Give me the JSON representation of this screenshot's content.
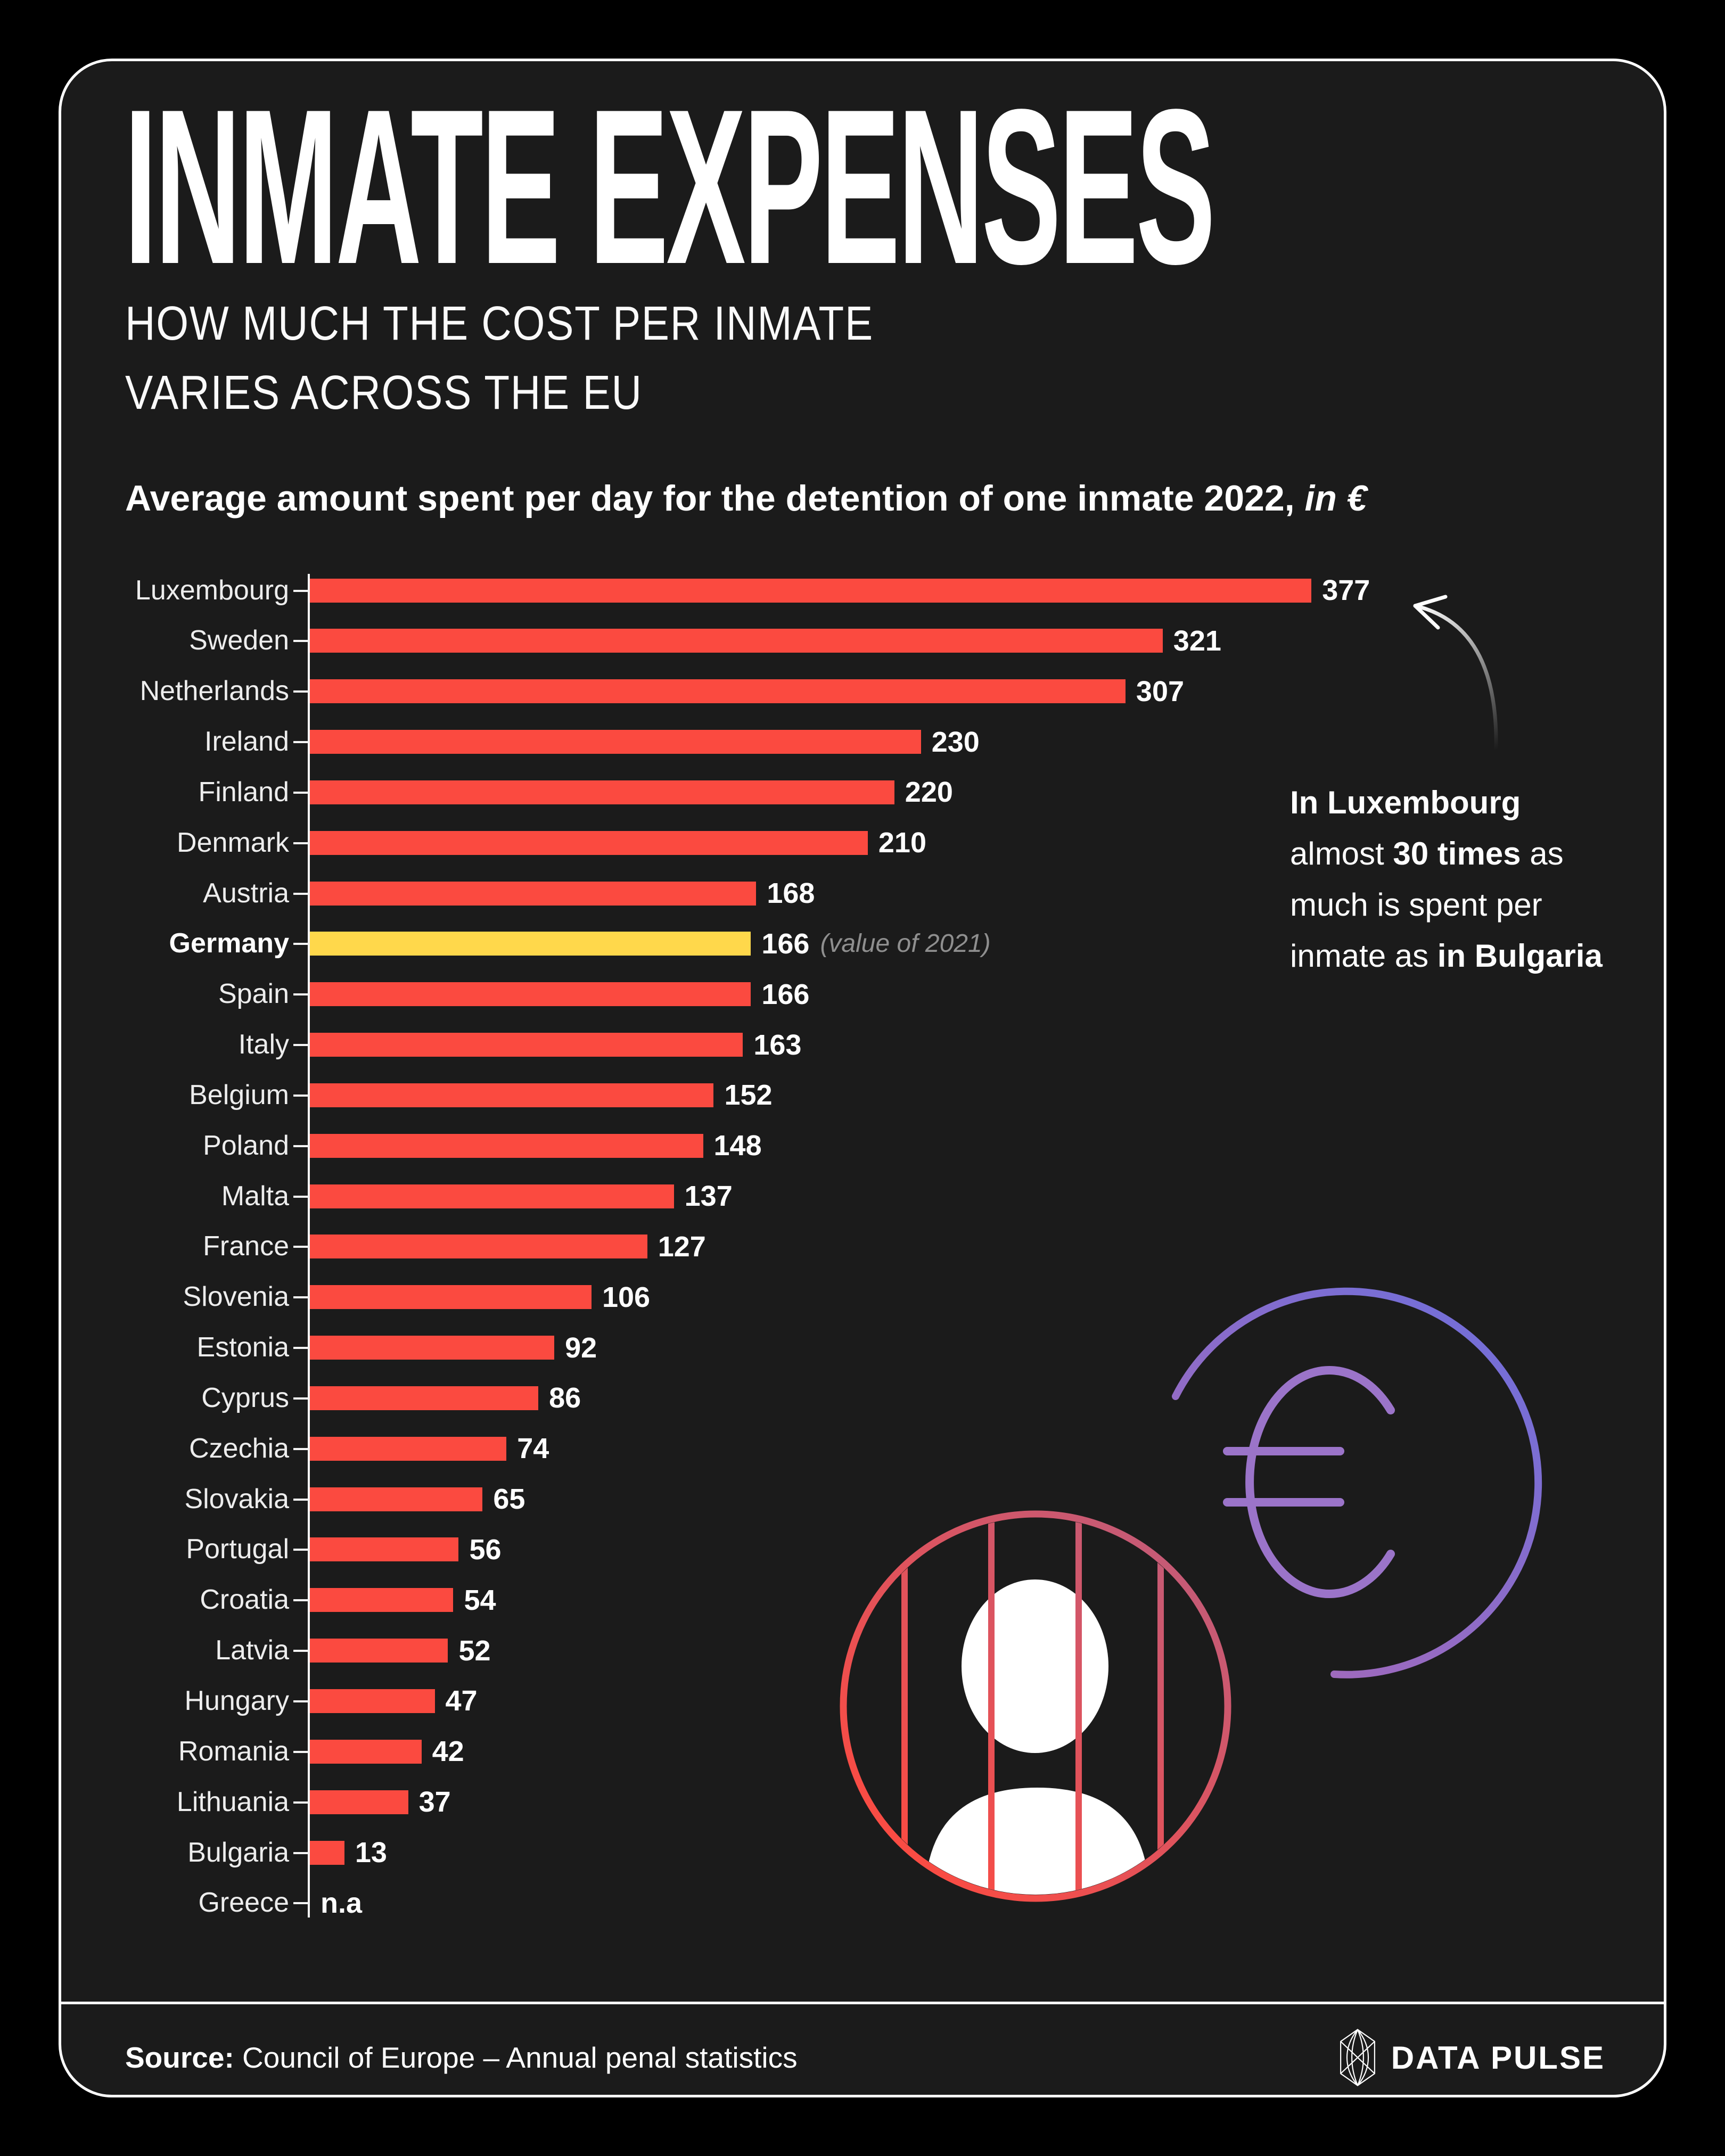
{
  "colors": {
    "page_bg": "#000000",
    "card_bg": "#1b1b1b",
    "card_border": "#ffffff",
    "bar_red": "#fb4a40",
    "bar_highlight_yellow": "#ffd84b",
    "note_gray": "#8f8f8f",
    "inmate_gradient": [
      "#ff4a3e",
      "#b55f85"
    ],
    "euro_coin_gradient": [
      "#6d6fdc",
      "#a869b7"
    ],
    "euro_sign_purple": "#9b74c9"
  },
  "header": {
    "title": "INMATE EXPENSES",
    "subtitle_line1": "HOW MUCH THE COST PER INMATE",
    "subtitle_line2": "VARIES ACROSS THE EU",
    "chart_heading_main": "Average amount spent per day for the detention of one inmate 2022, ",
    "chart_heading_italic": "in €"
  },
  "annotation": {
    "l1": "In Luxembourg",
    "l2a": "almost ",
    "l2b": "30 times",
    "l2c": " as",
    "l3": "much is spent per",
    "l4a": "inmate as ",
    "l4b": "in Bulgaria"
  },
  "chart_data": {
    "type": "bar",
    "orientation": "horizontal",
    "title": "Average amount spent per day for the detention of one inmate 2022, in €",
    "unit": "€ per day",
    "xlim": [
      0,
      377
    ],
    "grid": false,
    "categories": [
      "Luxembourg",
      "Sweden",
      "Netherlands",
      "Ireland",
      "Finland",
      "Denmark",
      "Austria",
      "Germany",
      "Spain",
      "Italy",
      "Belgium",
      "Poland",
      "Malta",
      "France",
      "Slovenia",
      "Estonia",
      "Cyprus",
      "Czechia",
      "Slovakia",
      "Portugal",
      "Croatia",
      "Latvia",
      "Hungary",
      "Romania",
      "Lithuania",
      "Bulgaria",
      "Greece"
    ],
    "values": [
      377,
      321,
      307,
      230,
      220,
      210,
      168,
      166,
      166,
      163,
      152,
      148,
      137,
      127,
      106,
      92,
      86,
      74,
      65,
      56,
      54,
      52,
      47,
      42,
      37,
      13,
      null
    ],
    "na_label": "n.a",
    "highlight_country": "Germany",
    "highlight_note": "(value of 2021)",
    "rows": [
      {
        "country": "Luxembourg",
        "value": 377
      },
      {
        "country": "Sweden",
        "value": 321
      },
      {
        "country": "Netherlands",
        "value": 307
      },
      {
        "country": "Ireland",
        "value": 230
      },
      {
        "country": "Finland",
        "value": 220
      },
      {
        "country": "Denmark",
        "value": 210
      },
      {
        "country": "Austria",
        "value": 168
      },
      {
        "country": "Germany",
        "value": 166,
        "highlight": true,
        "note": "(value of 2021)"
      },
      {
        "country": "Spain",
        "value": 166
      },
      {
        "country": "Italy",
        "value": 163
      },
      {
        "country": "Belgium",
        "value": 152
      },
      {
        "country": "Poland",
        "value": 148
      },
      {
        "country": "Malta",
        "value": 137
      },
      {
        "country": "France",
        "value": 127
      },
      {
        "country": "Slovenia",
        "value": 106
      },
      {
        "country": "Estonia",
        "value": 92
      },
      {
        "country": "Cyprus",
        "value": 86
      },
      {
        "country": "Czechia",
        "value": 74
      },
      {
        "country": "Slovakia",
        "value": 65
      },
      {
        "country": "Portugal",
        "value": 56
      },
      {
        "country": "Croatia",
        "value": 54
      },
      {
        "country": "Latvia",
        "value": 52
      },
      {
        "country": "Hungary",
        "value": 47
      },
      {
        "country": "Romania",
        "value": 42
      },
      {
        "country": "Lithuania",
        "value": 37
      },
      {
        "country": "Bulgaria",
        "value": 13
      },
      {
        "country": "Greece",
        "value": null,
        "display": "n.a"
      }
    ]
  },
  "footer": {
    "source_label": "Source:",
    "source_text": " Council of Europe – Annual penal statistics",
    "brand": "DATA PULSE"
  }
}
